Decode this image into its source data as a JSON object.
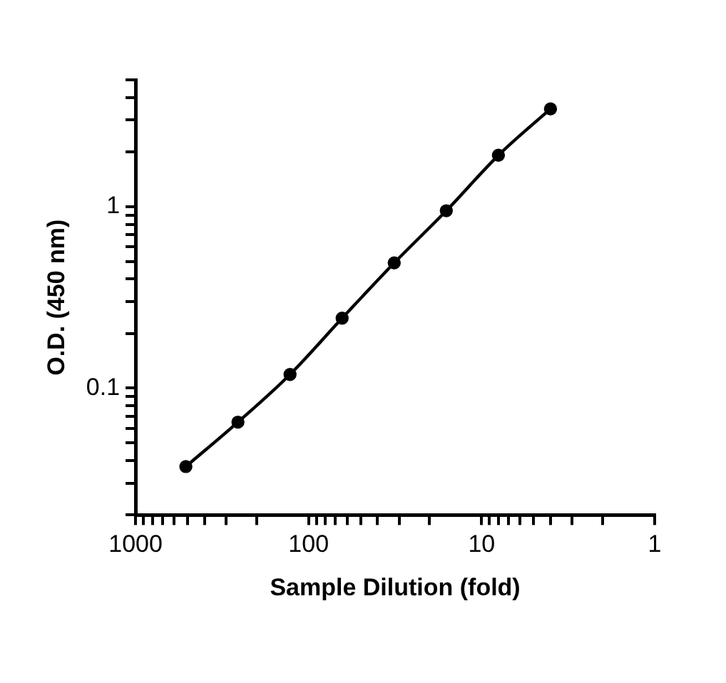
{
  "chart_data": {
    "type": "line",
    "xlabel": "Sample Dilution (fold)",
    "ylabel": "O.D. (450 nm)",
    "x": [
      512,
      256,
      128,
      64,
      32,
      16,
      8,
      4
    ],
    "series": [
      {
        "color": "#000000",
        "values": [
          0.037,
          0.065,
          0.119,
          0.243,
          0.49,
          0.95,
          1.92,
          3.46
        ]
      }
    ],
    "log": "xy",
    "xlim": [
      1000,
      1
    ],
    "ylim": [
      0.02,
      5
    ],
    "xticks": [
      1000,
      {
        "value": 900,
        "label": null
      },
      {
        "value": 800,
        "label": null
      },
      {
        "value": 700,
        "label": null
      },
      {
        "value": 600,
        "label": null
      },
      {
        "value": 500,
        "label": null
      },
      {
        "value": 400,
        "label": null
      },
      {
        "value": 300,
        "label": null
      },
      {
        "value": 200,
        "label": null
      },
      100,
      {
        "value": 90,
        "label": null
      },
      {
        "value": 80,
        "label": null
      },
      {
        "value": 70,
        "label": null
      },
      {
        "value": 60,
        "label": null
      },
      {
        "value": 50,
        "label": null
      },
      {
        "value": 40,
        "label": null
      },
      {
        "value": 30,
        "label": null
      },
      {
        "value": 20,
        "label": null
      },
      10,
      {
        "value": 9,
        "label": null
      },
      {
        "value": 8,
        "label": null
      },
      {
        "value": 7,
        "label": null
      },
      {
        "value": 6,
        "label": null
      },
      {
        "value": 5,
        "label": null
      },
      {
        "value": 4,
        "label": null
      },
      {
        "value": 3,
        "label": null
      },
      {
        "value": 2,
        "label": null
      },
      1
    ],
    "yticks": [
      {
        "value": 0.02,
        "label": null
      },
      {
        "value": 0.03,
        "label": null
      },
      {
        "value": 0.04,
        "label": null
      },
      {
        "value": 0.05,
        "label": null
      },
      {
        "value": 0.06,
        "label": null
      },
      {
        "value": 0.07,
        "label": null
      },
      {
        "value": 0.08,
        "label": null
      },
      {
        "value": 0.09,
        "label": null
      },
      0.1,
      {
        "value": 0.2,
        "label": null
      },
      {
        "value": 0.3,
        "label": null
      },
      {
        "value": 0.4,
        "label": null
      },
      {
        "value": 0.5,
        "label": null
      },
      {
        "value": 0.6,
        "label": null
      },
      {
        "value": 0.7,
        "label": null
      },
      {
        "value": 0.8,
        "label": null
      },
      {
        "value": 0.9,
        "label": null
      },
      1,
      {
        "value": 2,
        "label": null
      },
      {
        "value": 3,
        "label": null
      },
      {
        "value": 4,
        "label": null
      },
      {
        "value": 5,
        "label": null
      }
    ],
    "grid": false,
    "legend": false,
    "marker": "circle",
    "line_style": "solid"
  }
}
